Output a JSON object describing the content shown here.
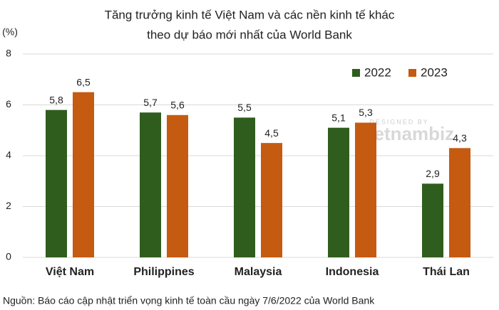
{
  "chart_data": {
    "type": "bar",
    "title": [
      "Tăng trưởng kinh tế Việt Nam và các nền kinh tế khác",
      "theo dự báo mới nhất của World Bank"
    ],
    "y_label": "(%)",
    "categories": [
      "Việt Nam",
      "Philippines",
      "Malaysia",
      "Indonesia",
      "Thái Lan"
    ],
    "series": [
      {
        "name": "2022",
        "color": "#2f5d1e",
        "values": [
          5.8,
          5.7,
          5.5,
          5.1,
          2.9
        ],
        "value_labels": [
          "5,8",
          "5,7",
          "5,5",
          "5,1",
          "2,9"
        ]
      },
      {
        "name": "2023",
        "color": "#c55a11",
        "values": [
          6.5,
          5.6,
          4.5,
          5.3,
          4.3
        ],
        "value_labels": [
          "6,5",
          "5,6",
          "4,5",
          "5,3",
          "4,3"
        ]
      }
    ],
    "ylim": [
      0,
      8
    ],
    "yticks": [
      0,
      2,
      4,
      6,
      8
    ],
    "grid": true,
    "legend": "top-right",
    "watermark": [
      "DESIGNED BY",
      "vietnambiz"
    ],
    "source": "Nguồn: Báo cáo cập nhật triển vọng kinh tế toàn cầu ngày 7/6/2022 của World Bank"
  }
}
